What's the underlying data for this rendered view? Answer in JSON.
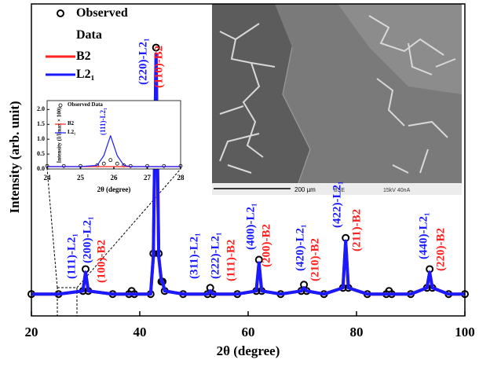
{
  "chart_data": [
    {
      "type": "line",
      "xlabel": "2θ (degree)",
      "ylabel": "Intensity (arb. unit)",
      "xlim": [
        20,
        100
      ],
      "xticks": [
        20,
        40,
        60,
        80,
        100
      ],
      "ylim": [
        0,
        100
      ],
      "x": [
        20,
        25,
        29.5,
        30,
        30.5,
        35,
        38,
        38.5,
        39,
        42,
        42.5,
        43,
        43.5,
        44,
        44.2,
        44.6,
        48,
        52.5,
        53,
        53.5,
        58,
        61.5,
        62,
        62.5,
        66,
        69.8,
        70.3,
        70.8,
        74,
        77.5,
        78,
        78.5,
        82,
        85.5,
        86,
        86.5,
        90,
        93,
        93.5,
        94,
        97,
        100
      ],
      "series": [
        {
          "name": "Observed Data",
          "color": "#000000",
          "style": "markers",
          "values": [
            7,
            7,
            8,
            15,
            8,
            7,
            7,
            8,
            7,
            7,
            20,
            86,
            20,
            11,
            11,
            8,
            7,
            7,
            9,
            7,
            7,
            8,
            18,
            8,
            7,
            8,
            10,
            8,
            7,
            9,
            25,
            9,
            7,
            7,
            8,
            7,
            7,
            9,
            15,
            9,
            7,
            7
          ]
        },
        {
          "name": "B2",
          "color": "#ff2020",
          "style": "line",
          "values": [
            7,
            7,
            8,
            14,
            8,
            7,
            7,
            7,
            7,
            7,
            19,
            84,
            19,
            11,
            11,
            8,
            7,
            7,
            8,
            7,
            7,
            8,
            17,
            8,
            7,
            8,
            9,
            8,
            7,
            9,
            24,
            9,
            7,
            7,
            7,
            7,
            7,
            9,
            14,
            9,
            7,
            7
          ]
        },
        {
          "name": "L2₁",
          "color": "#1a1aff",
          "style": "line",
          "values": [
            7,
            7,
            8,
            14,
            8,
            7,
            7,
            7,
            7,
            7,
            19,
            84,
            19,
            11,
            11,
            8,
            7,
            7,
            8,
            7,
            7,
            8,
            17,
            8,
            7,
            8,
            9,
            8,
            7,
            9,
            24,
            9,
            7,
            7,
            7,
            7,
            7,
            9,
            14,
            9,
            7,
            7
          ]
        }
      ],
      "annotations": [
        {
          "text": "(111)-L2₁",
          "color": "#1a1aff"
        },
        {
          "text": "(200)-L2₁",
          "color": "#1a1aff"
        },
        {
          "text": "(100)-B2",
          "color": "#ff2020"
        },
        {
          "text": "(220)-L2₁",
          "color": "#1a1aff"
        },
        {
          "text": "(110)-B2",
          "color": "#ff2020"
        },
        {
          "text": "(311)-L2₁",
          "color": "#1a1aff"
        },
        {
          "text": "(222)-L2₁",
          "color": "#1a1aff"
        },
        {
          "text": "(111)-B2",
          "color": "#ff2020"
        },
        {
          "text": "(400)-L2₁",
          "color": "#1a1aff"
        },
        {
          "text": "(200)-B2",
          "color": "#ff2020"
        },
        {
          "text": "(420)-L2₁",
          "color": "#1a1aff"
        },
        {
          "text": "(210)-B2",
          "color": "#ff2020"
        },
        {
          "text": "(422)-L2₁",
          "color": "#1a1aff"
        },
        {
          "text": "(211)-B2",
          "color": "#ff2020"
        },
        {
          "text": "(440)-L2₁",
          "color": "#1a1aff"
        },
        {
          "text": "(220)-B2",
          "color": "#ff2020"
        }
      ]
    },
    {
      "type": "line",
      "xlabel": "2θ (degree)",
      "ylabel": "Intensity (I/Imax × 100)",
      "xlim": [
        24,
        28
      ],
      "xticks": [
        24,
        25,
        26,
        27,
        28
      ],
      "ylim": [
        0,
        2.3
      ],
      "yticks": [
        {
          "value": 0,
          "label": "0.0"
        },
        0.5,
        {
          "value": 1,
          "label": "1.0"
        },
        1.5,
        {
          "value": 2,
          "label": "2.0"
        }
      ],
      "x": [
        24,
        24.5,
        25,
        25.5,
        25.7,
        25.9,
        26.1,
        26.3,
        26.5,
        27,
        27.5,
        28
      ],
      "series": [
        {
          "name": "Observed Data",
          "color": "#000000",
          "style": "markers",
          "values": [
            0.1,
            0.1,
            0.1,
            0.12,
            0.18,
            0.3,
            0.18,
            0.12,
            0.1,
            0.1,
            0.1,
            0.1
          ]
        },
        {
          "name": "B2",
          "color": "#ff2020",
          "style": "line",
          "values": [
            0.08,
            0.08,
            0.08,
            0.08,
            0.08,
            0.08,
            0.08,
            0.08,
            0.08,
            0.08,
            0.08,
            0.08
          ]
        },
        {
          "name": "L2₁",
          "color": "#1a1aff",
          "style": "line",
          "values": [
            0.08,
            0.08,
            0.08,
            0.12,
            0.45,
            1.12,
            0.45,
            0.12,
            0.08,
            0.08,
            0.08,
            0.08
          ]
        }
      ],
      "annotations": [
        {
          "text": "(111)-L2₁",
          "color": "#1a1aff"
        }
      ]
    }
  ],
  "image": {
    "scale_bar": "200 µm",
    "detector": "BSE",
    "conditions": "15kV 40nA"
  }
}
